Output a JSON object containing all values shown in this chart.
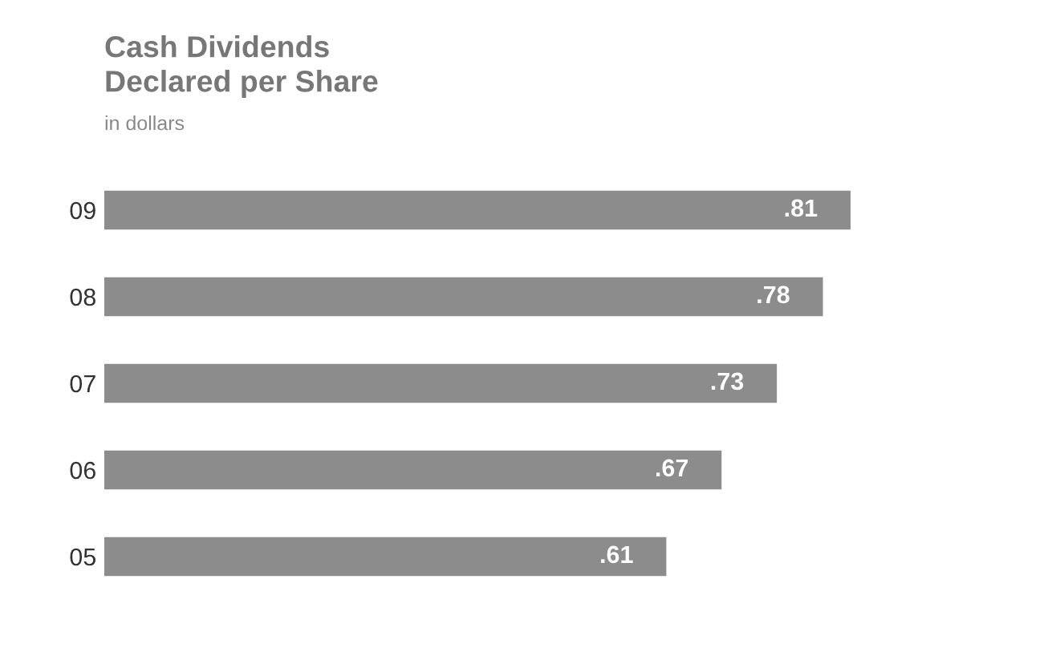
{
  "chart_data": {
    "type": "bar",
    "orientation": "horizontal",
    "title": "Cash Dividends\nDeclared per Share",
    "subtitle": "in dollars",
    "categories": [
      "09",
      "08",
      "07",
      "06",
      "05"
    ],
    "values": [
      0.81,
      0.78,
      0.73,
      0.67,
      0.61
    ],
    "value_labels": [
      ".81",
      ".78",
      ".73",
      ".67",
      ".61"
    ],
    "color": "#8c8c8c",
    "grid": false,
    "legend": false
  }
}
